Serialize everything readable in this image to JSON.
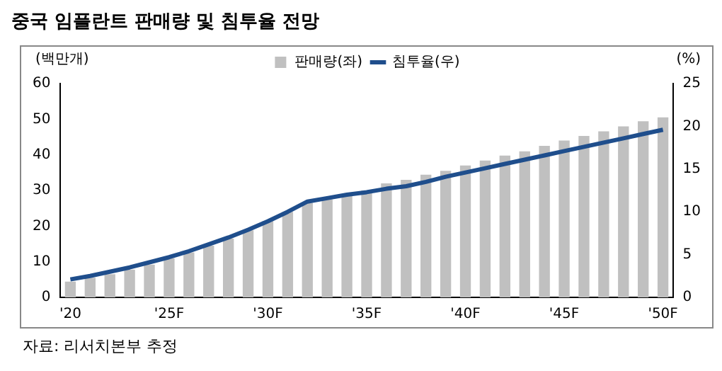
{
  "chart_data": {
    "type": "bar",
    "title": "중국 임플란트 판매량 및 침투율 전망",
    "ylabel": "(백만개)",
    "y2label": "(%)",
    "categories": [
      "'20",
      null,
      null,
      null,
      null,
      "'25F",
      null,
      null,
      null,
      null,
      "'30F",
      null,
      null,
      null,
      null,
      "'35F",
      null,
      null,
      null,
      null,
      "'40F",
      null,
      null,
      null,
      null,
      "'45F",
      null,
      null,
      null,
      null,
      "'50F"
    ],
    "series": [
      {
        "name": "판매량(좌)",
        "color": "#c0c0c0",
        "values": [
          4.4,
          5.5,
          6.5,
          7.8,
          9.2,
          11,
          12.6,
          14.5,
          16.5,
          18.8,
          21.4,
          24,
          26.5,
          27.5,
          28.7,
          30,
          32,
          33,
          34.4,
          35.5,
          37,
          38.4,
          39.8,
          41,
          42.5,
          44,
          45.3,
          46.6,
          48,
          49.4,
          50.5
        ]
      },
      {
        "name": "침투율(우)",
        "type": "line",
        "axis": "y2",
        "color": "#1f4e8c",
        "values": [
          2.1,
          2.5,
          3.0,
          3.5,
          4.1,
          4.7,
          5.4,
          6.2,
          7.0,
          7.9,
          8.9,
          10.0,
          11.2,
          11.6,
          12.0,
          12.3,
          12.7,
          13.0,
          13.5,
          14.1,
          14.6,
          15.1,
          15.6,
          16.1,
          16.6,
          17.1,
          17.6,
          18.1,
          18.6,
          19.1,
          19.6
        ]
      }
    ],
    "ylim": [
      0,
      60
    ],
    "yticks": [
      0,
      10,
      20,
      30,
      40,
      50,
      60
    ],
    "y2lim": [
      0,
      25
    ],
    "y2ticks": [
      0,
      5,
      10,
      15,
      20,
      25
    ],
    "grid": false,
    "legend": "top right",
    "marker": "none",
    "line_style": "solid",
    "annotations": [
      "자료: 리서치본부 추정"
    ]
  }
}
